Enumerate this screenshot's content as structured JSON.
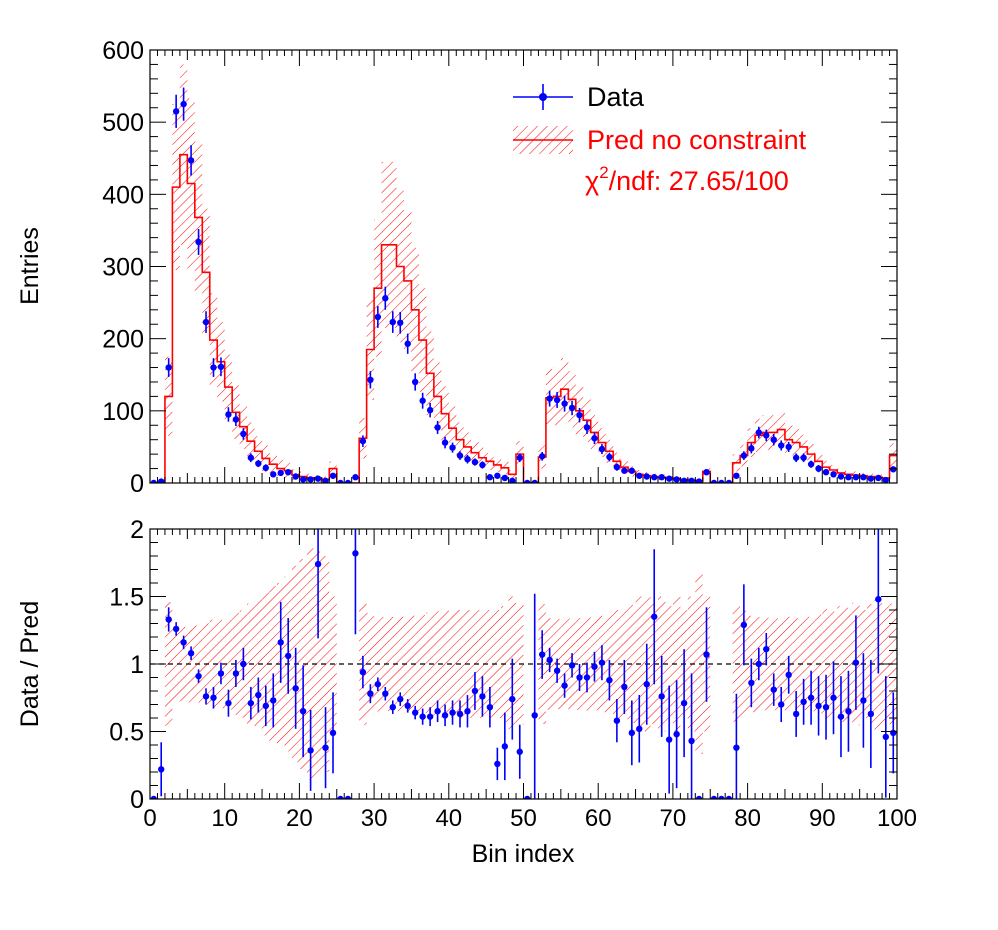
{
  "colors": {
    "data": "#0000ff",
    "prediction": "#ff0000",
    "background": "#ffffff",
    "axis": "#000000"
  },
  "chart_data": [
    {
      "type": "histogram",
      "panel": "main",
      "ylabel": "Entries",
      "ylim": [
        0,
        600
      ],
      "xlim": [
        0,
        100
      ],
      "yticks": [
        0,
        100,
        200,
        300,
        400,
        500,
        600
      ],
      "ytick_labels": [
        "0",
        "100",
        "200",
        "300",
        "400",
        "500",
        "600"
      ],
      "legend": {
        "position": "top-right",
        "entries": [
          {
            "label": "Data",
            "color": "#0000ff",
            "marker": "point-with-errorbar"
          },
          {
            "label": "Pred no constraint",
            "color": "#ff0000",
            "marker": "hatched-band-line"
          }
        ],
        "chi2_symbol": "χ",
        "chi2_exponent": "2",
        "chi2_rest": "/ndf: 27.65/100"
      },
      "prediction": {
        "name": "Pred no constraint",
        "values": [
          0,
          0,
          120,
          410,
          455,
          415,
          368,
          292,
          198,
          168,
          133,
          98,
          78,
          58,
          44,
          34,
          26,
          20,
          17,
          11,
          9,
          7,
          6,
          5,
          20,
          0,
          0,
          0,
          62,
          185,
          270,
          330,
          330,
          300,
          280,
          240,
          198,
          152,
          120,
          96,
          76,
          60,
          50,
          42,
          35,
          30,
          25,
          21,
          12,
          40,
          0,
          0,
          36,
          118,
          120,
          130,
          116,
          100,
          87,
          70,
          56,
          44,
          30,
          22,
          16,
          12,
          10,
          9,
          8,
          7,
          6,
          5,
          4,
          3,
          16,
          0,
          0,
          0,
          28,
          38,
          56,
          66,
          70,
          70,
          74,
          60,
          56,
          50,
          40,
          30,
          22,
          18,
          14,
          12,
          11,
          10,
          9,
          8,
          7,
          38
        ],
        "errors": [
          0,
          0,
          55,
          115,
          125,
          118,
          105,
          88,
          65,
          55,
          45,
          37,
          31,
          26,
          21,
          18,
          15,
          12,
          11,
          8,
          7,
          6,
          5,
          4,
          10,
          0,
          0,
          0,
          28,
          70,
          95,
          115,
          115,
          105,
          98,
          86,
          72,
          58,
          47,
          38,
          30,
          24,
          20,
          17,
          14,
          12,
          10,
          9,
          6,
          18,
          0,
          0,
          16,
          40,
          40,
          43,
          39,
          34,
          30,
          24,
          20,
          16,
          12,
          9,
          7,
          6,
          5,
          4,
          4,
          3,
          3,
          2,
          2,
          2,
          8,
          0,
          0,
          0,
          12,
          15,
          20,
          23,
          24,
          24,
          25,
          21,
          19,
          17,
          14,
          11,
          9,
          7,
          6,
          5,
          5,
          4,
          4,
          4,
          3,
          17
        ]
      },
      "data": {
        "name": "Data",
        "values": [
          0,
          2,
          160,
          515,
          525,
          447,
          334,
          223,
          160,
          161,
          95,
          88,
          68,
          35,
          27,
          21,
          12,
          14,
          15,
          9,
          5,
          5,
          6,
          3,
          10,
          0,
          0,
          8,
          58,
          143,
          230,
          256,
          223,
          222,
          193,
          140,
          114,
          101,
          77,
          56,
          49,
          38,
          33,
          29,
          25,
          8,
          10,
          7,
          3,
          35,
          0,
          0,
          37,
          117,
          115,
          110,
          104,
          94,
          77,
          62,
          47,
          36,
          22,
          17,
          17,
          10,
          9,
          8,
          8,
          6,
          5,
          3,
          3,
          2,
          15,
          0,
          0,
          0,
          10,
          38,
          48,
          70,
          66,
          60,
          52,
          50,
          35,
          35,
          26,
          20,
          15,
          12,
          9,
          8,
          8,
          8,
          6,
          7,
          4,
          19
        ],
        "errors": [
          0,
          2,
          13,
          23,
          23,
          21,
          18,
          15,
          13,
          13,
          10,
          9,
          8,
          6,
          5,
          5,
          4,
          4,
          4,
          3,
          2,
          2,
          3,
          2,
          3,
          0,
          0,
          3,
          8,
          12,
          15,
          16,
          15,
          15,
          14,
          12,
          11,
          10,
          9,
          8,
          7,
          6,
          6,
          5,
          5,
          3,
          3,
          3,
          2,
          6,
          0,
          0,
          6,
          11,
          11,
          11,
          10,
          10,
          9,
          8,
          7,
          6,
          5,
          4,
          4,
          3,
          3,
          3,
          3,
          3,
          2,
          2,
          2,
          1,
          4,
          0,
          0,
          0,
          3,
          6,
          7,
          8,
          8,
          8,
          7,
          7,
          6,
          6,
          5,
          5,
          4,
          4,
          3,
          3,
          3,
          3,
          3,
          3,
          2,
          4
        ]
      }
    },
    {
      "type": "scatter",
      "panel": "ratio",
      "xlabel": "Bin index",
      "ylabel": "Data / Pred",
      "xlim": [
        0,
        100
      ],
      "ylim": [
        0,
        2
      ],
      "xticks": [
        0,
        10,
        20,
        30,
        40,
        50,
        60,
        70,
        80,
        90,
        100
      ],
      "xtick_labels": [
        "0",
        "10",
        "20",
        "30",
        "40",
        "50",
        "60",
        "70",
        "80",
        "90",
        "100"
      ],
      "yticks": [
        0,
        0.5,
        1,
        1.5,
        2
      ],
      "ytick_labels": [
        "0",
        "0.5",
        "1",
        "1.5",
        "2"
      ],
      "reference_line": 1,
      "ratio": {
        "values": [
          0,
          0.22,
          1.33,
          1.26,
          1.16,
          1.08,
          0.91,
          0.76,
          0.75,
          0.93,
          0.71,
          0.93,
          1.0,
          0.71,
          0.77,
          0.69,
          0.73,
          1.16,
          1.06,
          0.82,
          0.65,
          0.36,
          1.74,
          0.38,
          0.49,
          0,
          0,
          1.82,
          0.94,
          0.78,
          0.85,
          0.78,
          0.68,
          0.74,
          0.69,
          0.64,
          0.61,
          0.61,
          0.65,
          0.62,
          0.64,
          0.63,
          0.65,
          0.8,
          0.76,
          0.68,
          0.26,
          0.39,
          0.74,
          0.35,
          0,
          0.62,
          1.07,
          1.03,
          0.95,
          0.84,
          0.99,
          0.9,
          0.9,
          0.98,
          1.01,
          0.88,
          0.58,
          0.83,
          0.49,
          0.52,
          0.85,
          1.35,
          0.76,
          0.44,
          0.48,
          0.71,
          0.43,
          0,
          1.07,
          0,
          0,
          0,
          0.38,
          1.29,
          0.86,
          1.0,
          1.11,
          0.81,
          0.7,
          0.92,
          0.63,
          0.72,
          0.75,
          0.69,
          0.68,
          0.75,
          0.61,
          0.65,
          1.01,
          0.73,
          0.63,
          1.48,
          0.46,
          0.49
        ],
        "errors": [
          0,
          0.2,
          0.09,
          0.05,
          0.05,
          0.05,
          0.05,
          0.06,
          0.08,
          0.08,
          0.1,
          0.1,
          0.12,
          0.12,
          0.13,
          0.15,
          0.2,
          0.3,
          0.28,
          0.3,
          0.34,
          0.3,
          0.55,
          0.3,
          0.3,
          0,
          0,
          0.6,
          0.12,
          0.07,
          0.05,
          0.05,
          0.05,
          0.05,
          0.05,
          0.05,
          0.06,
          0.07,
          0.08,
          0.08,
          0.09,
          0.1,
          0.12,
          0.14,
          0.15,
          0.15,
          0.12,
          0.25,
          0.3,
          0.2,
          0,
          0.9,
          0.18,
          0.09,
          0.09,
          0.09,
          0.09,
          0.1,
          0.11,
          0.11,
          0.13,
          0.15,
          0.16,
          0.2,
          0.24,
          0.25,
          0.3,
          0.5,
          0.3,
          0.4,
          0.4,
          0.4,
          0.5,
          0,
          0.35,
          0,
          0,
          0,
          0.4,
          0.3,
          0.18,
          0.12,
          0.12,
          0.12,
          0.13,
          0.14,
          0.17,
          0.17,
          0.2,
          0.22,
          0.24,
          0.27,
          0.3,
          0.3,
          0.35,
          0.35,
          0.4,
          0.55,
          0.45,
          0.3
        ]
      }
    }
  ]
}
